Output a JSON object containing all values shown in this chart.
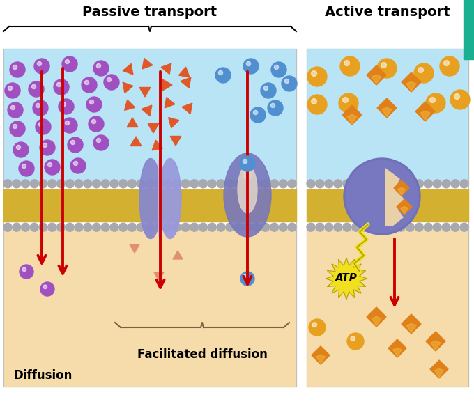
{
  "title_passive": "Passive transport",
  "title_active": "Active transport",
  "label_diffusion": "Diffusion",
  "label_facilitated": "Facilitated diffusion",
  "label_atp": "ATP",
  "bg_color": "#ffffff",
  "cell_top_color": "#b8e4f5",
  "cell_bottom_color": "#f5dcaa",
  "membrane_yellow": "#d4b030",
  "membrane_gray": "#a8a8b0",
  "protein_color": "#8888cc",
  "arrow_color": "#cc0000",
  "purple_sphere": "#a050c0",
  "orange_triangle": "#e05828",
  "blue_sphere": "#5090d0",
  "orange_circle": "#e8a020",
  "orange_diamond": "#e08018",
  "yellow_atp": "#f0e020",
  "teal_corner": "#18b090",
  "brace_color": "#806040"
}
